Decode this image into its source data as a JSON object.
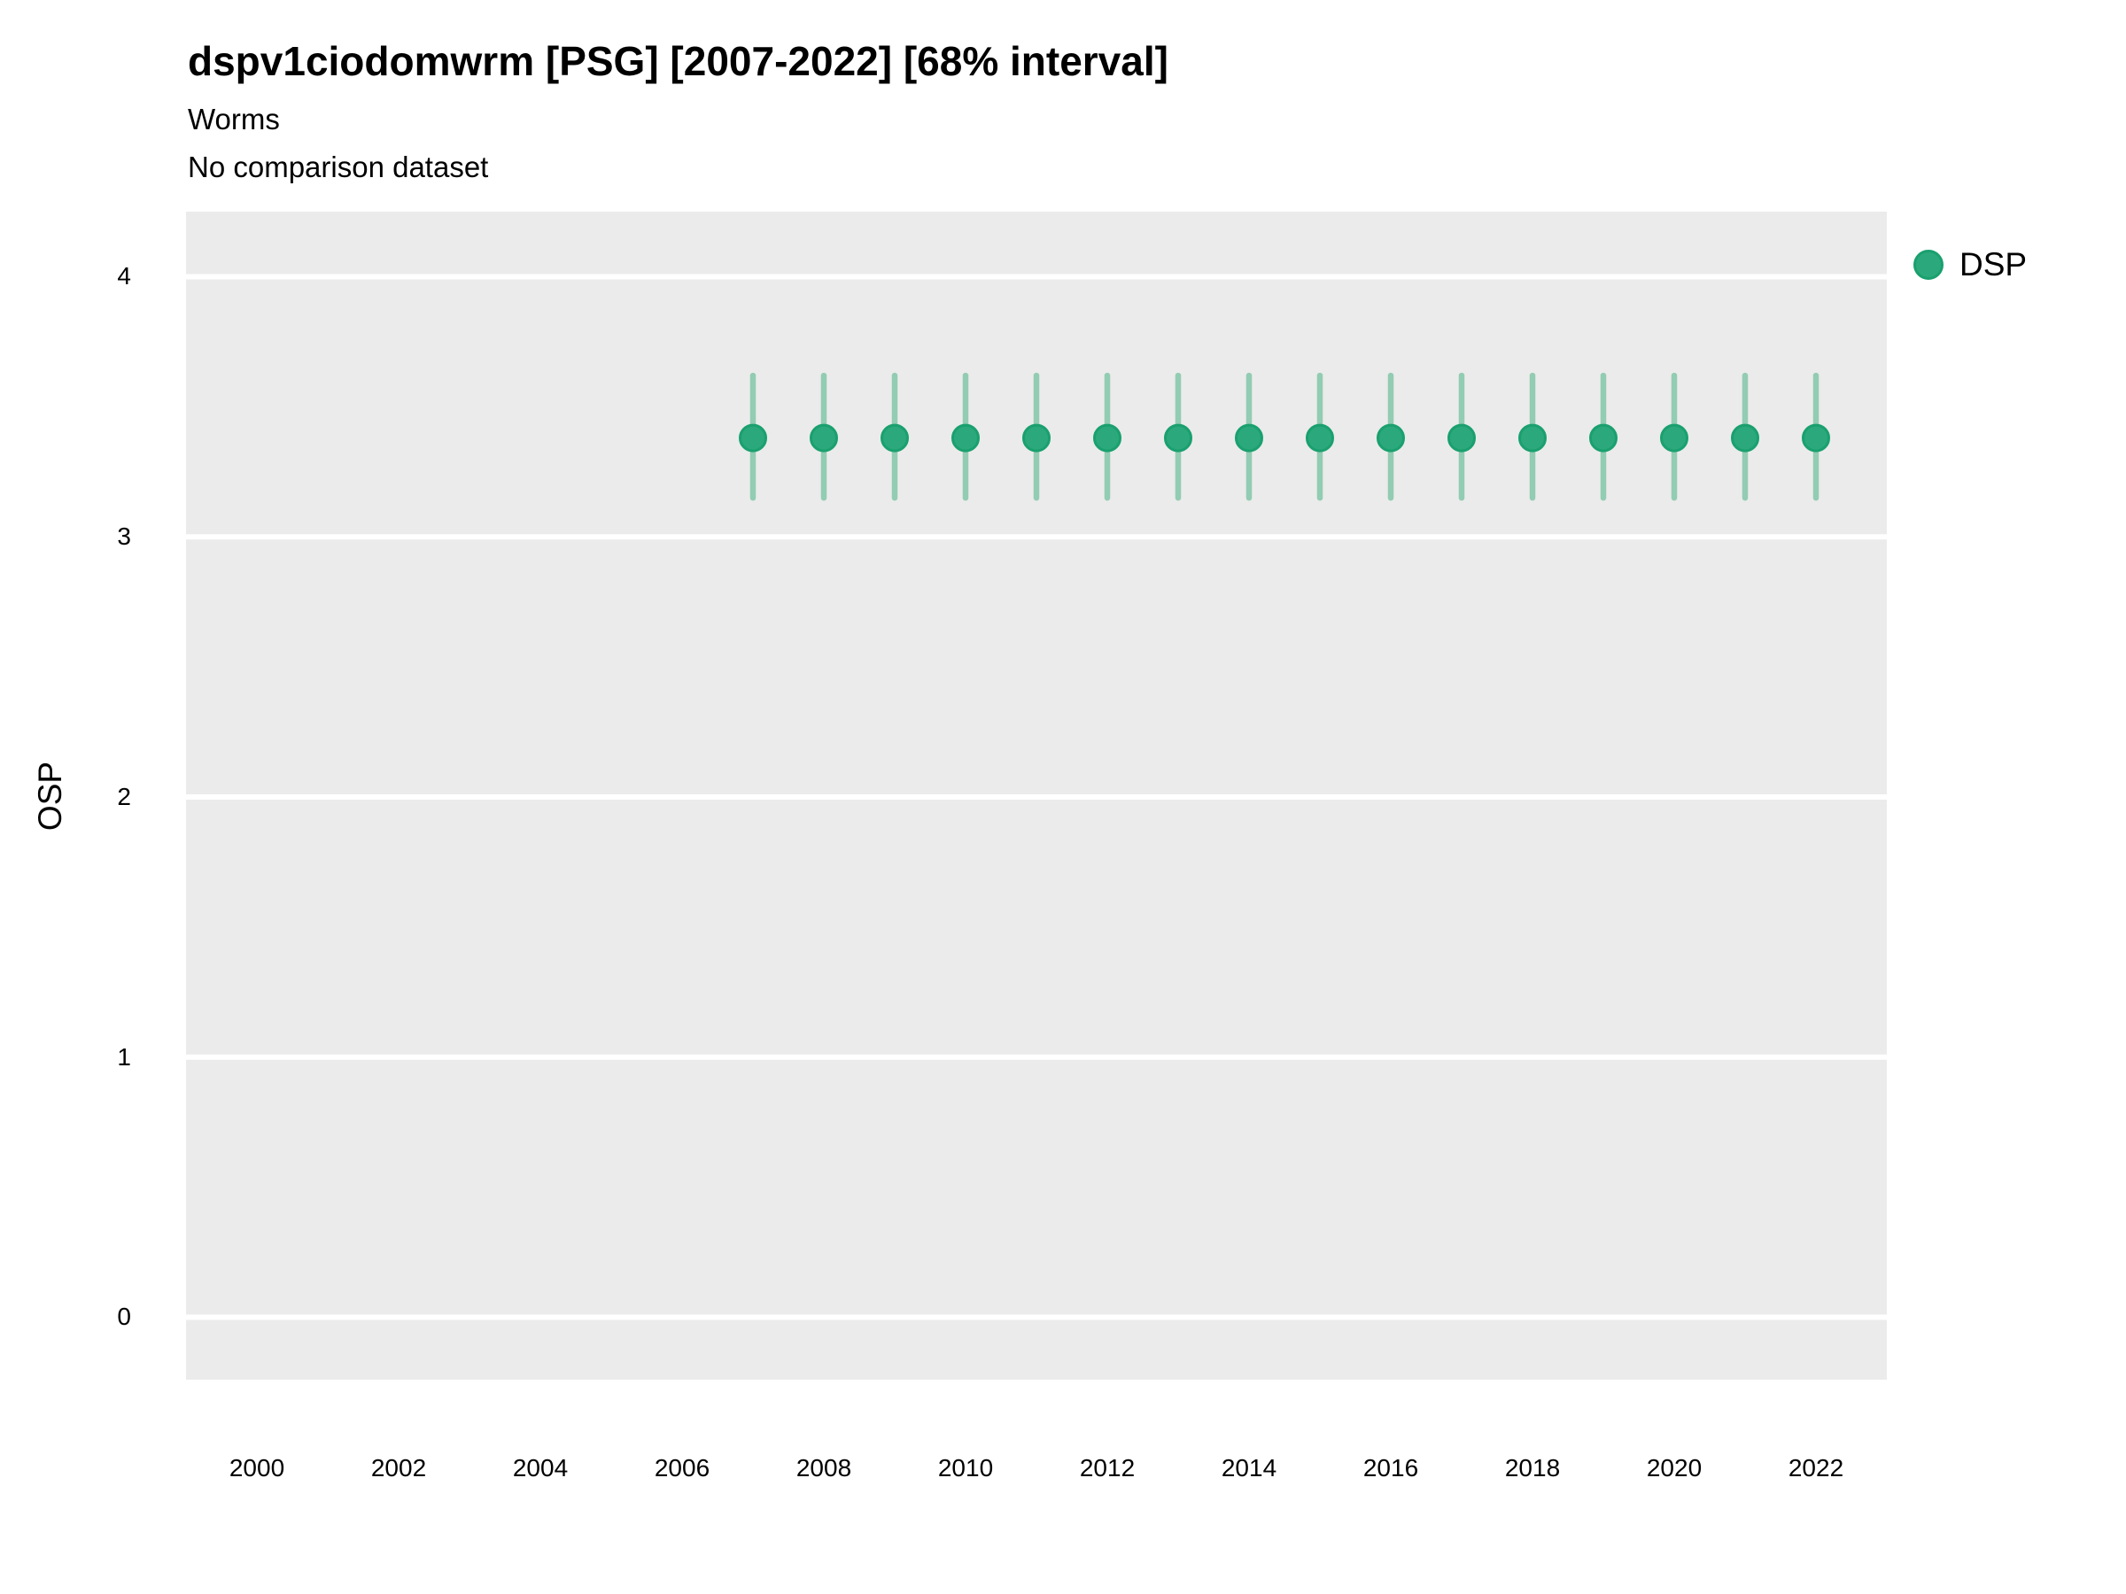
{
  "header": {
    "title": "dspv1ciodomwrm [PSG] [2007-2022] [68% interval]",
    "subtitle": "Worms",
    "comparison_note": "No comparison dataset"
  },
  "axes": {
    "y_label": "OSP"
  },
  "legend": {
    "items": [
      {
        "label": "DSP",
        "swatch": "circle-icon",
        "color": "#2ba97c",
        "stroke": "#1aa06f"
      }
    ]
  },
  "colors": {
    "panel_background": "#ebebeb",
    "gridline": "#ffffff",
    "point_fill": "#2ba97c",
    "point_stroke": "#1aa06f",
    "interval_bar": "#92ccb2",
    "text": "#000000"
  },
  "chart_data": {
    "type": "scatter",
    "title": "dspv1ciodomwrm [PSG] [2007-2022] [68% interval]",
    "subtitle": "Worms",
    "annotation": "No comparison dataset",
    "xlabel": "",
    "ylabel": "OSP",
    "xlim": [
      1999,
      2023
    ],
    "ylim": [
      -0.24,
      4.25
    ],
    "x_ticks": [
      2000,
      2002,
      2004,
      2006,
      2008,
      2010,
      2012,
      2014,
      2016,
      2018,
      2020,
      2022
    ],
    "y_ticks": [
      0,
      1,
      2,
      3,
      4
    ],
    "grid": "horizontal-major-only",
    "legend_position": "right",
    "interval_level": "68%",
    "series": [
      {
        "name": "DSP",
        "color": "#2ba97c",
        "points": [
          {
            "x": 2007,
            "y": 3.38,
            "low": 3.15,
            "high": 3.62
          },
          {
            "x": 2008,
            "y": 3.38,
            "low": 3.15,
            "high": 3.62
          },
          {
            "x": 2009,
            "y": 3.38,
            "low": 3.15,
            "high": 3.62
          },
          {
            "x": 2010,
            "y": 3.38,
            "low": 3.15,
            "high": 3.62
          },
          {
            "x": 2011,
            "y": 3.38,
            "low": 3.15,
            "high": 3.62
          },
          {
            "x": 2012,
            "y": 3.38,
            "low": 3.15,
            "high": 3.62
          },
          {
            "x": 2013,
            "y": 3.38,
            "low": 3.15,
            "high": 3.62
          },
          {
            "x": 2014,
            "y": 3.38,
            "low": 3.15,
            "high": 3.62
          },
          {
            "x": 2015,
            "y": 3.38,
            "low": 3.15,
            "high": 3.62
          },
          {
            "x": 2016,
            "y": 3.38,
            "low": 3.15,
            "high": 3.62
          },
          {
            "x": 2017,
            "y": 3.38,
            "low": 3.15,
            "high": 3.62
          },
          {
            "x": 2018,
            "y": 3.38,
            "low": 3.15,
            "high": 3.62
          },
          {
            "x": 2019,
            "y": 3.38,
            "low": 3.15,
            "high": 3.62
          },
          {
            "x": 2020,
            "y": 3.38,
            "low": 3.15,
            "high": 3.62
          },
          {
            "x": 2021,
            "y": 3.38,
            "low": 3.15,
            "high": 3.62
          },
          {
            "x": 2022,
            "y": 3.38,
            "low": 3.15,
            "high": 3.62
          }
        ]
      }
    ]
  }
}
